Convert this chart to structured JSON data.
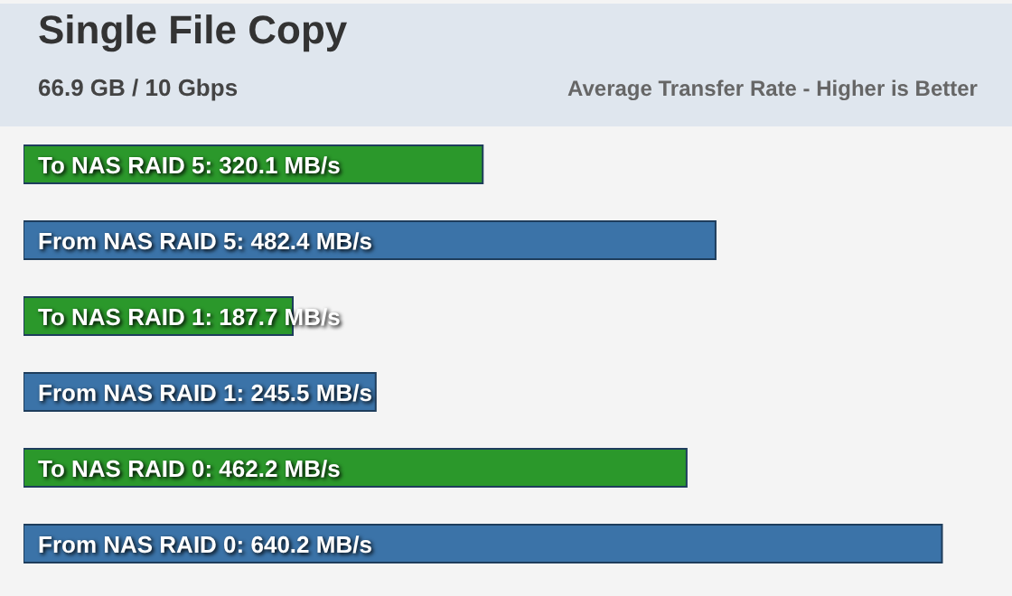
{
  "chart_data": {
    "type": "bar",
    "title": "Single File Copy",
    "subtitle": "66.9 GB / 10 Gbps",
    "annotations": [
      "Average Transfer Rate - Higher is Better"
    ],
    "categories": [
      null,
      null,
      null,
      null,
      null,
      null
    ],
    "values": [
      320.1,
      482.4,
      187.7,
      245.5,
      462.2,
      640.2
    ],
    "colors": [
      "#2b982b",
      "#3b73a8",
      "#2b982b",
      "#3b73a8",
      "#2b982b",
      "#3b73a8"
    ],
    "value_labels": [
      "To NAS RAID 5: 320.1 MB/s",
      "From NAS RAID 5: 482.4 MB/s",
      "To NAS RAID 1: 187.7 MB/s",
      "From NAS RAID 1: 245.5 MB/s",
      "To NAS RAID 0: 462.2 MB/s",
      "From NAS RAID 0: 640.2 MB/s"
    ],
    "orientation": "horizontal"
  }
}
